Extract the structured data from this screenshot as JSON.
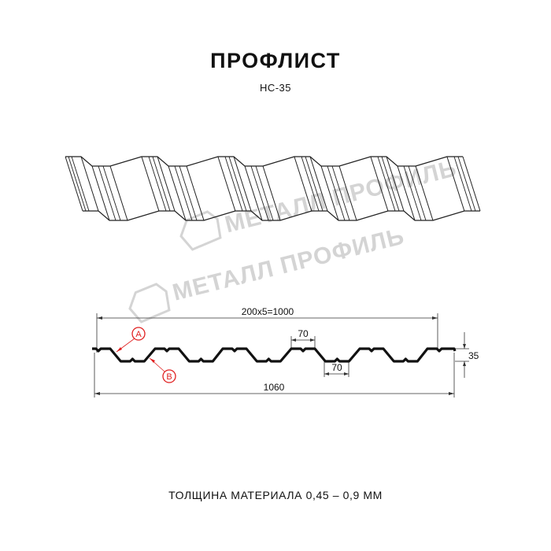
{
  "header": {
    "title": "ПРОФЛИСТ",
    "subtitle": "НС-35"
  },
  "watermark": {
    "text": "МЕТАЛЛ ПРОФИЛЬ",
    "color": "#d4d4d4"
  },
  "drawing": {
    "dimension_pitch_total": "200x5=1000",
    "dimension_total_width": "1060",
    "dimension_height": "35",
    "dimension_top_flat": "70",
    "dimension_bottom_flat": "70",
    "label_a": "A",
    "label_b": "B",
    "accent_color": "#e02020"
  },
  "footer": {
    "material_thickness": "ТОЛЩИНА МАТЕРИАЛА 0,45 – 0,9 ММ"
  }
}
